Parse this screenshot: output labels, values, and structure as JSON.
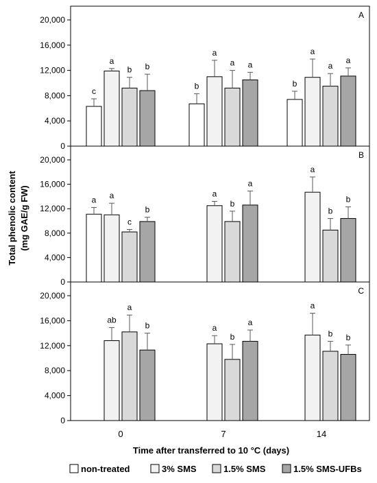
{
  "ylabel_line1": "Total phenolic content",
  "ylabel_line2": "(mg GAE/g FW)",
  "xlabel": "Time after transferred to 10 °C (days)",
  "x_ticks": [
    "0",
    "7",
    "14"
  ],
  "y_ticks": [
    "0",
    "4,000",
    "8,000",
    "12,000",
    "16,000",
    "20,000"
  ],
  "legend": [
    {
      "label": "non-treated",
      "color": "#ffffff"
    },
    {
      "label": "3% SMS",
      "color": "#f2f2f2"
    },
    {
      "label": "1.5% SMS",
      "color": "#d9d9d9"
    },
    {
      "label": "1.5% SMS-UFBs",
      "color": "#a6a6a6"
    }
  ],
  "chart_data": [
    {
      "type": "bar",
      "panel_label": "A",
      "categories": [
        "0",
        "7",
        "14"
      ],
      "ylim": [
        0,
        20000
      ],
      "series": [
        {
          "name": "non-treated",
          "values": [
            6300,
            6700,
            7400
          ],
          "errors": [
            1200,
            1600,
            1300
          ],
          "letters": [
            "c",
            "b",
            "b"
          ]
        },
        {
          "name": "3% SMS",
          "values": [
            11900,
            11000,
            10900
          ],
          "errors": [
            400,
            2600,
            2900
          ],
          "letters": [
            "a",
            "a",
            "a"
          ]
        },
        {
          "name": "1.5% SMS",
          "values": [
            9200,
            9200,
            9500
          ],
          "errors": [
            1700,
            2800,
            2000
          ],
          "letters": [
            "b",
            "a",
            "a"
          ]
        },
        {
          "name": "1.5% SMS-UFBs",
          "values": [
            8800,
            10500,
            11100
          ],
          "errors": [
            2600,
            1200,
            1300
          ],
          "letters": [
            "b",
            "a",
            "a"
          ]
        }
      ]
    },
    {
      "type": "bar",
      "panel_label": "B",
      "categories": [
        "0",
        "7",
        "14"
      ],
      "ylim": [
        0,
        20000
      ],
      "series": [
        {
          "name": "non-treated",
          "values": [
            11100,
            null,
            null
          ],
          "errors": [
            1100,
            null,
            null
          ],
          "letters": [
            "a",
            "",
            ""
          ]
        },
        {
          "name": "3% SMS",
          "values": [
            11000,
            12500,
            14700
          ],
          "errors": [
            1900,
            700,
            2500
          ],
          "letters": [
            "a",
            "a",
            "a"
          ]
        },
        {
          "name": "1.5% SMS",
          "values": [
            8200,
            9900,
            8500
          ],
          "errors": [
            400,
            1700,
            1900
          ],
          "letters": [
            "c",
            "b",
            "b"
          ]
        },
        {
          "name": "1.5% SMS-UFBs",
          "values": [
            9900,
            12600,
            10400
          ],
          "errors": [
            700,
            2300,
            1900
          ],
          "letters": [
            "b",
            "a",
            "b"
          ]
        }
      ]
    },
    {
      "type": "bar",
      "panel_label": "C",
      "categories": [
        "0",
        "7",
        "14"
      ],
      "ylim": [
        0,
        20000
      ],
      "series": [
        {
          "name": "non-treated",
          "values": [
            null,
            null,
            null
          ],
          "errors": [
            null,
            null,
            null
          ],
          "letters": [
            "",
            "",
            ""
          ]
        },
        {
          "name": "3% SMS",
          "values": [
            12800,
            12300,
            13700
          ],
          "errors": [
            2100,
            1300,
            3500
          ],
          "letters": [
            "ab",
            "a",
            "a"
          ]
        },
        {
          "name": "1.5% SMS",
          "values": [
            14200,
            9800,
            11100
          ],
          "errors": [
            2700,
            2400,
            1600
          ],
          "letters": [
            "a",
            "b",
            "b"
          ]
        },
        {
          "name": "1.5% SMS-UFBs",
          "values": [
            11300,
            12700,
            10600
          ],
          "errors": [
            2700,
            1800,
            1500
          ],
          "letters": [
            "b",
            "a",
            "b"
          ]
        }
      ]
    }
  ]
}
